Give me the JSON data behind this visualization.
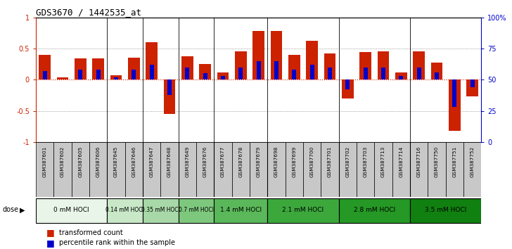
{
  "title": "GDS3670 / 1442535_at",
  "samples": [
    "GSM387601",
    "GSM387602",
    "GSM387605",
    "GSM387606",
    "GSM387645",
    "GSM387646",
    "GSM387647",
    "GSM387648",
    "GSM387649",
    "GSM387676",
    "GSM387677",
    "GSM387678",
    "GSM387679",
    "GSM387698",
    "GSM387699",
    "GSM387700",
    "GSM387701",
    "GSM387702",
    "GSM387703",
    "GSM387713",
    "GSM387714",
    "GSM387716",
    "GSM387750",
    "GSM387751",
    "GSM387752"
  ],
  "transformed_count": [
    0.4,
    0.04,
    0.34,
    0.34,
    0.07,
    0.35,
    0.6,
    -0.55,
    0.38,
    0.25,
    0.12,
    0.45,
    0.78,
    0.78,
    0.4,
    0.62,
    0.42,
    -0.3,
    0.44,
    0.45,
    0.12,
    0.45,
    0.27,
    -0.82,
    -0.27
  ],
  "percentile_rank": [
    0.57,
    0.5,
    0.58,
    0.58,
    0.52,
    0.58,
    0.62,
    0.38,
    0.6,
    0.55,
    0.53,
    0.6,
    0.65,
    0.65,
    0.58,
    0.62,
    0.6,
    0.42,
    0.6,
    0.6,
    0.53,
    0.6,
    0.56,
    0.28,
    0.44
  ],
  "dose_groups": [
    {
      "label": "0 mM HOCl",
      "start": 0,
      "end": 4,
      "color": "#e8f5e8"
    },
    {
      "label": "0.14 mM HOCl",
      "start": 4,
      "end": 6,
      "color": "#c8e8c8"
    },
    {
      "label": "0.35 mM HOCl",
      "start": 6,
      "end": 8,
      "color": "#a8d8a8"
    },
    {
      "label": "0.7 mM HOCl",
      "start": 8,
      "end": 10,
      "color": "#7ec87e"
    },
    {
      "label": "1.4 mM HOCl",
      "start": 10,
      "end": 13,
      "color": "#5ab85a"
    },
    {
      "label": "2.1 mM HOCl",
      "start": 13,
      "end": 17,
      "color": "#3ca83c"
    },
    {
      "label": "2.8 mM HOCl",
      "start": 17,
      "end": 21,
      "color": "#259825"
    },
    {
      "label": "3.5 mM HOCl",
      "start": 21,
      "end": 25,
      "color": "#108010"
    }
  ],
  "bar_color_red": "#cc2200",
  "bar_color_blue": "#0000cc",
  "bg_color": "#ffffff",
  "yticks": [
    -1,
    -0.5,
    0,
    0.5,
    1
  ],
  "ytick_labels": [
    "-1",
    "-0.5",
    "0",
    "0.5",
    "1"
  ],
  "y2tick_labels": [
    "0",
    "25",
    "50",
    "75",
    "100%"
  ],
  "sample_box_color": "#c8c8c8",
  "dose_label_color": "black",
  "legend_red_label": "transformed count",
  "legend_blue_label": "percentile rank within the sample"
}
